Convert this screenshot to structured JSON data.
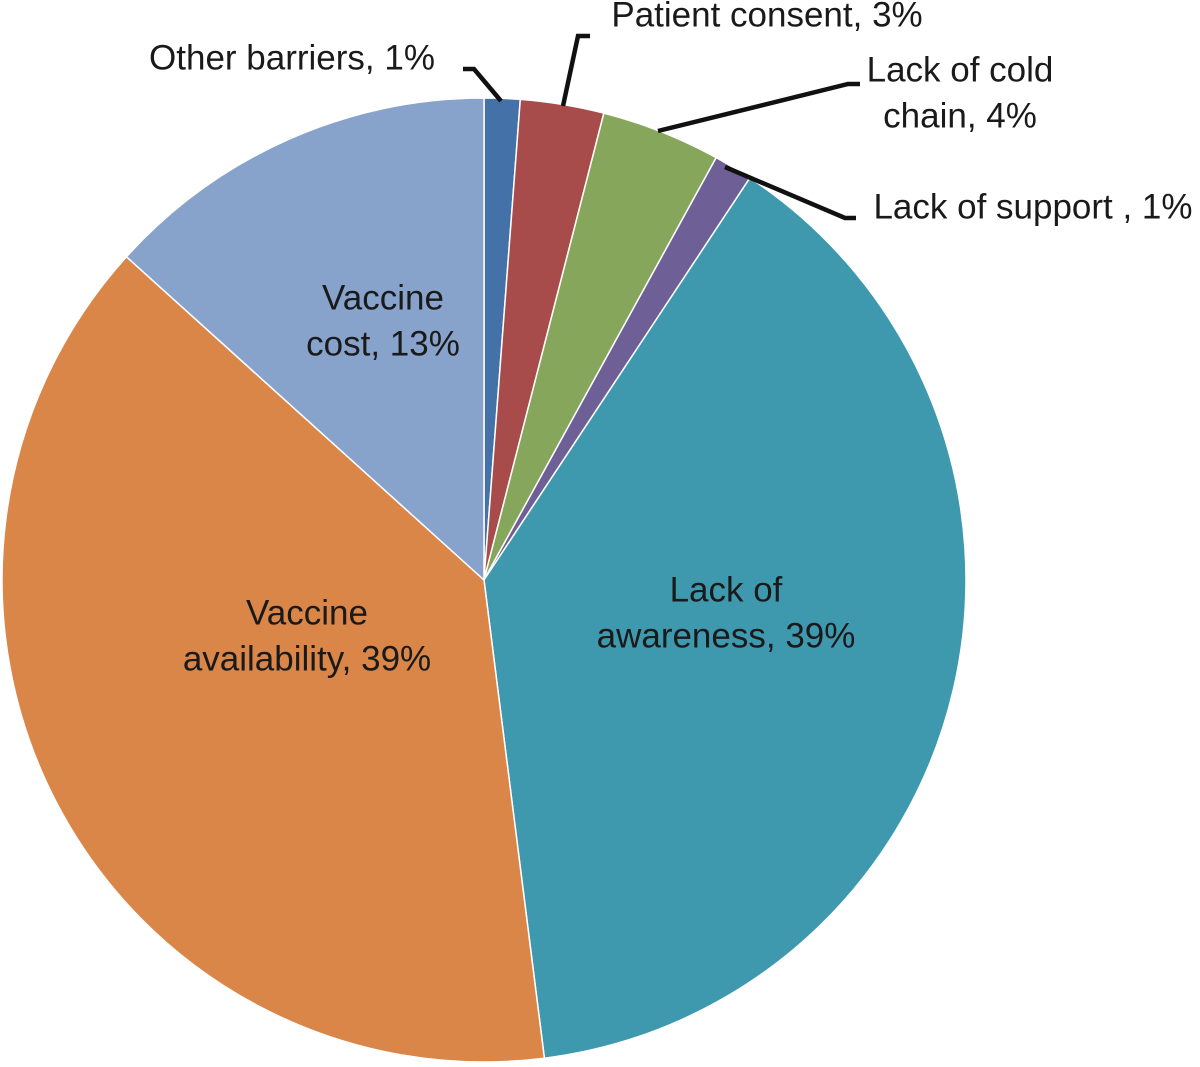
{
  "chart_data": {
    "type": "pie",
    "start_angle_deg": 0,
    "direction": "clockwise",
    "slices": [
      {
        "label_lines": [
          "Other barriers, 1%"
        ],
        "name": "Other barriers",
        "value": 1.2,
        "color": "#4472A8"
      },
      {
        "label_lines": [
          "Patient consent, 3%"
        ],
        "name": "Patient consent",
        "value": 2.8,
        "color": "#A84C4B"
      },
      {
        "label_lines": [
          "Lack of cold",
          "chain, 4%"
        ],
        "name": "Lack of cold chain",
        "value": 4.0,
        "color": "#86A65C"
      },
      {
        "label_lines": [
          "Lack of support , 1%"
        ],
        "name": "Lack of support",
        "value": 1.3,
        "color": "#6F5F97"
      },
      {
        "label_lines": [
          "Lack of",
          "awareness, 39%"
        ],
        "name": "Lack of awareness",
        "value": 38.7,
        "color": "#3F99AE"
      },
      {
        "label_lines": [
          "Vaccine",
          "availability, 39%"
        ],
        "name": "Vaccine availability",
        "value": 38.7,
        "color": "#D98648"
      },
      {
        "label_lines": [
          "Vaccine",
          "cost, 13%"
        ],
        "name": "Vaccine cost",
        "value": 13.3,
        "color": "#87A3CB"
      }
    ]
  }
}
